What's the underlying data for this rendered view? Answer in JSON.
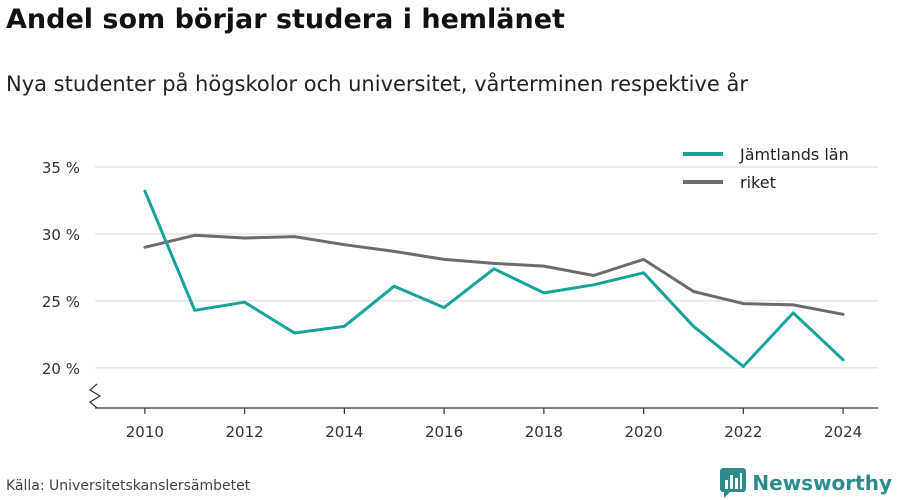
{
  "header": {
    "title": "Andel som börjar studera i hemlänet",
    "subtitle": "Nya studenter på högskolor och universitet, vårterminen respektive år"
  },
  "footer": {
    "source": "Källa: Universitetskanslersämbetet",
    "brand": "Newsworthy",
    "brand_icon": "bar-chart-logo-icon"
  },
  "chart_data": {
    "type": "line",
    "x": [
      2010,
      2011,
      2012,
      2013,
      2014,
      2015,
      2016,
      2017,
      2018,
      2019,
      2020,
      2021,
      2022,
      2023,
      2024
    ],
    "x_ticks": [
      "2010",
      "2012",
      "2014",
      "2016",
      "2018",
      "2020",
      "2022",
      "2024"
    ],
    "y_ticks": [
      "20 %",
      "25 %",
      "30 %",
      "35 %"
    ],
    "ylim": [
      17,
      35
    ],
    "grid": true,
    "legend_position": "top-right",
    "series": [
      {
        "name": "Jämtlands län",
        "color": "#16a39a",
        "values": [
          33.2,
          24.3,
          24.9,
          22.6,
          23.1,
          26.1,
          24.5,
          27.4,
          25.6,
          26.2,
          27.1,
          23.1,
          20.1,
          24.1,
          20.6
        ]
      },
      {
        "name": "riket",
        "color": "#6c6c70",
        "values": [
          29.0,
          29.9,
          29.7,
          29.8,
          29.2,
          28.7,
          28.1,
          27.8,
          27.6,
          26.9,
          28.1,
          25.7,
          24.8,
          24.7,
          24.0
        ]
      }
    ]
  }
}
